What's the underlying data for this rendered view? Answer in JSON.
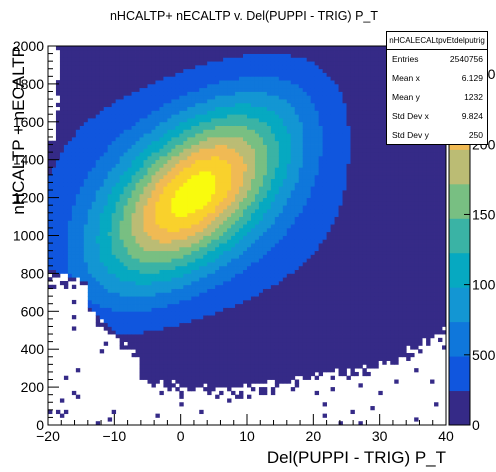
{
  "chart_data": {
    "type": "heatmap",
    "title": "nHCALTP+ nECALTP v. Del(PUPPI - TRIG) P_T",
    "xlabel": "Del(PUPPI - TRIG) P_T",
    "ylabel": "nHCALTP + nECALTP",
    "xlim": [
      -20,
      40
    ],
    "ylim": [
      0,
      2000
    ],
    "x_ticks": [
      "−20",
      "−10",
      "0",
      "10",
      "20",
      "30",
      "40"
    ],
    "y_ticks": [
      "0",
      "200",
      "400",
      "600",
      "800",
      "1000",
      "1200",
      "1400",
      "1600",
      "1800",
      "2000"
    ],
    "z_ticks": [
      "0",
      "500",
      "1000",
      "1500",
      "2000",
      "2500"
    ],
    "zlim": [
      0,
      2700
    ],
    "colormap": "kBird",
    "colors": [
      "#352a87",
      "#1056de",
      "#0f77db",
      "#1396d3",
      "#06a9c1",
      "#3ab3a5",
      "#78bf82",
      "#bbbc74",
      "#f0ba54",
      "#f9d12c",
      "#f9fb0e"
    ],
    "peak": {
      "x": 2,
      "y": 1220,
      "z": 2600
    },
    "stats": {
      "name": "nHCALECALtpvEtdelputrig",
      "entries_label": "Entries",
      "entries": "2540756",
      "mean_x_label": "Mean x",
      "mean_x": "6.129",
      "mean_y_label": "Mean y",
      "mean_y": "1232",
      "std_x_label": "Std Dev x",
      "std_x": "9.824",
      "std_y_label": "Std Dev y",
      "std_y": "250"
    }
  }
}
